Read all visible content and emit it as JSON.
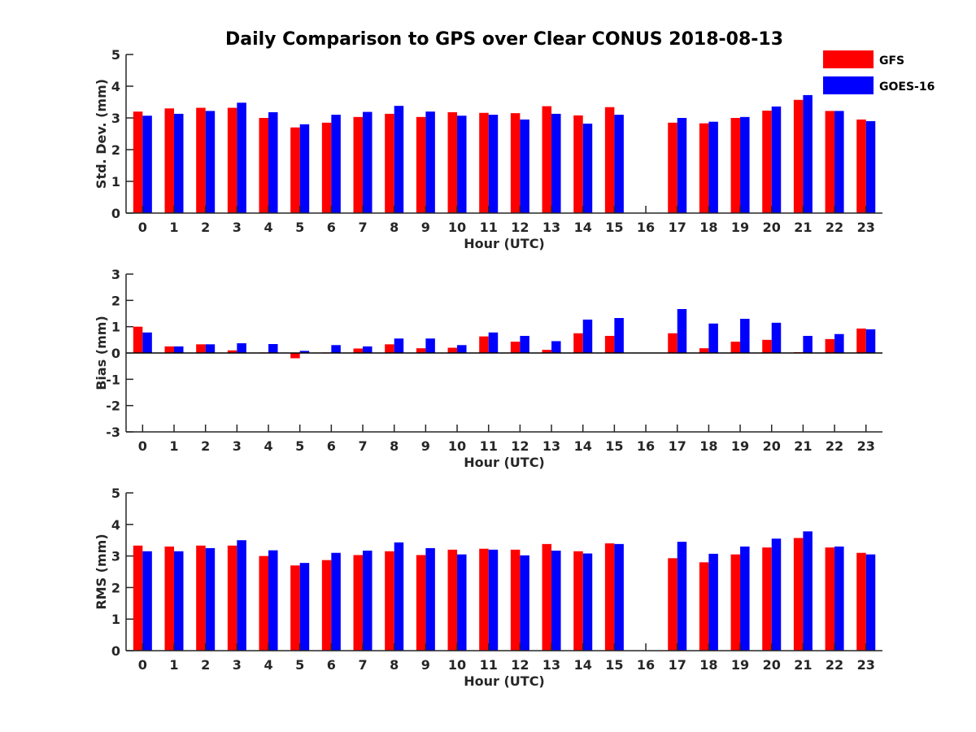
{
  "chart_data": {
    "title": "Daily Comparison to GPS over Clear CONUS 2018-08-13",
    "type": "bar",
    "categories": [
      "0",
      "1",
      "2",
      "3",
      "4",
      "5",
      "6",
      "7",
      "8",
      "9",
      "10",
      "11",
      "12",
      "13",
      "14",
      "15",
      "16",
      "17",
      "18",
      "19",
      "20",
      "21",
      "22",
      "23"
    ],
    "legend": {
      "placement": "top-right",
      "entries": [
        {
          "name": "GFS",
          "color": "#ff0000"
        },
        {
          "name": "GOES-16",
          "color": "#0000ff"
        }
      ]
    },
    "charts": [
      {
        "id": "std",
        "xlabel": "Hour (UTC)",
        "ylabel": "Std. Dev. (mm)",
        "ylim": [
          0,
          5
        ],
        "yticks": [
          0,
          1,
          2,
          3,
          4,
          5
        ],
        "series": [
          {
            "name": "GFS",
            "color": "#ff0000",
            "values": [
              3.2,
              3.3,
              3.32,
              3.32,
              3.0,
              2.7,
              2.85,
              3.03,
              3.13,
              3.03,
              3.18,
              3.16,
              3.15,
              3.37,
              3.08,
              3.34,
              null,
              2.85,
              2.83,
              3.0,
              3.23,
              3.57,
              3.22,
              2.95
            ]
          },
          {
            "name": "GOES-16",
            "color": "#0000ff",
            "values": [
              3.07,
              3.13,
              3.22,
              3.48,
              3.18,
              2.8,
              3.1,
              3.19,
              3.38,
              3.2,
              3.07,
              3.1,
              2.95,
              3.13,
              2.82,
              3.1,
              null,
              3.0,
              2.88,
              3.03,
              3.36,
              3.72,
              3.22,
              2.9
            ]
          }
        ]
      },
      {
        "id": "bias",
        "xlabel": "Hour (UTC)",
        "ylabel": "Bias (mm)",
        "ylim": [
          -3,
          3
        ],
        "yticks": [
          -3,
          -2,
          -1,
          0,
          1,
          2,
          3
        ],
        "series": [
          {
            "name": "GFS",
            "color": "#ff0000",
            "values": [
              1.0,
              0.25,
              0.33,
              0.1,
              0.02,
              -0.2,
              0.02,
              0.17,
              0.33,
              0.18,
              0.2,
              0.63,
              0.43,
              0.12,
              0.75,
              0.65,
              null,
              0.75,
              0.18,
              0.43,
              0.5,
              0.03,
              0.53,
              0.93
            ]
          },
          {
            "name": "GOES-16",
            "color": "#0000ff",
            "values": [
              0.78,
              0.25,
              0.33,
              0.37,
              0.34,
              0.08,
              0.3,
              0.25,
              0.55,
              0.55,
              0.3,
              0.78,
              0.65,
              0.45,
              1.27,
              1.33,
              null,
              1.67,
              1.12,
              1.3,
              1.15,
              0.65,
              0.72,
              0.9
            ]
          }
        ]
      },
      {
        "id": "rms",
        "xlabel": "Hour (UTC)",
        "ylabel": "RMS (mm)",
        "ylim": [
          0,
          5
        ],
        "yticks": [
          0,
          1,
          2,
          3,
          4,
          5
        ],
        "series": [
          {
            "name": "GFS",
            "color": "#ff0000",
            "values": [
              3.33,
              3.3,
              3.33,
              3.33,
              3.0,
              2.7,
              2.87,
              3.03,
              3.15,
              3.03,
              3.2,
              3.23,
              3.2,
              3.38,
              3.15,
              3.4,
              null,
              2.93,
              2.8,
              3.05,
              3.27,
              3.57,
              3.27,
              3.1
            ]
          },
          {
            "name": "GOES-16",
            "color": "#0000ff",
            "values": [
              3.15,
              3.15,
              3.25,
              3.5,
              3.18,
              2.78,
              3.1,
              3.17,
              3.43,
              3.25,
              3.05,
              3.2,
              3.02,
              3.17,
              3.08,
              3.38,
              null,
              3.45,
              3.07,
              3.3,
              3.55,
              3.78,
              3.3,
              3.05
            ]
          }
        ]
      }
    ]
  }
}
